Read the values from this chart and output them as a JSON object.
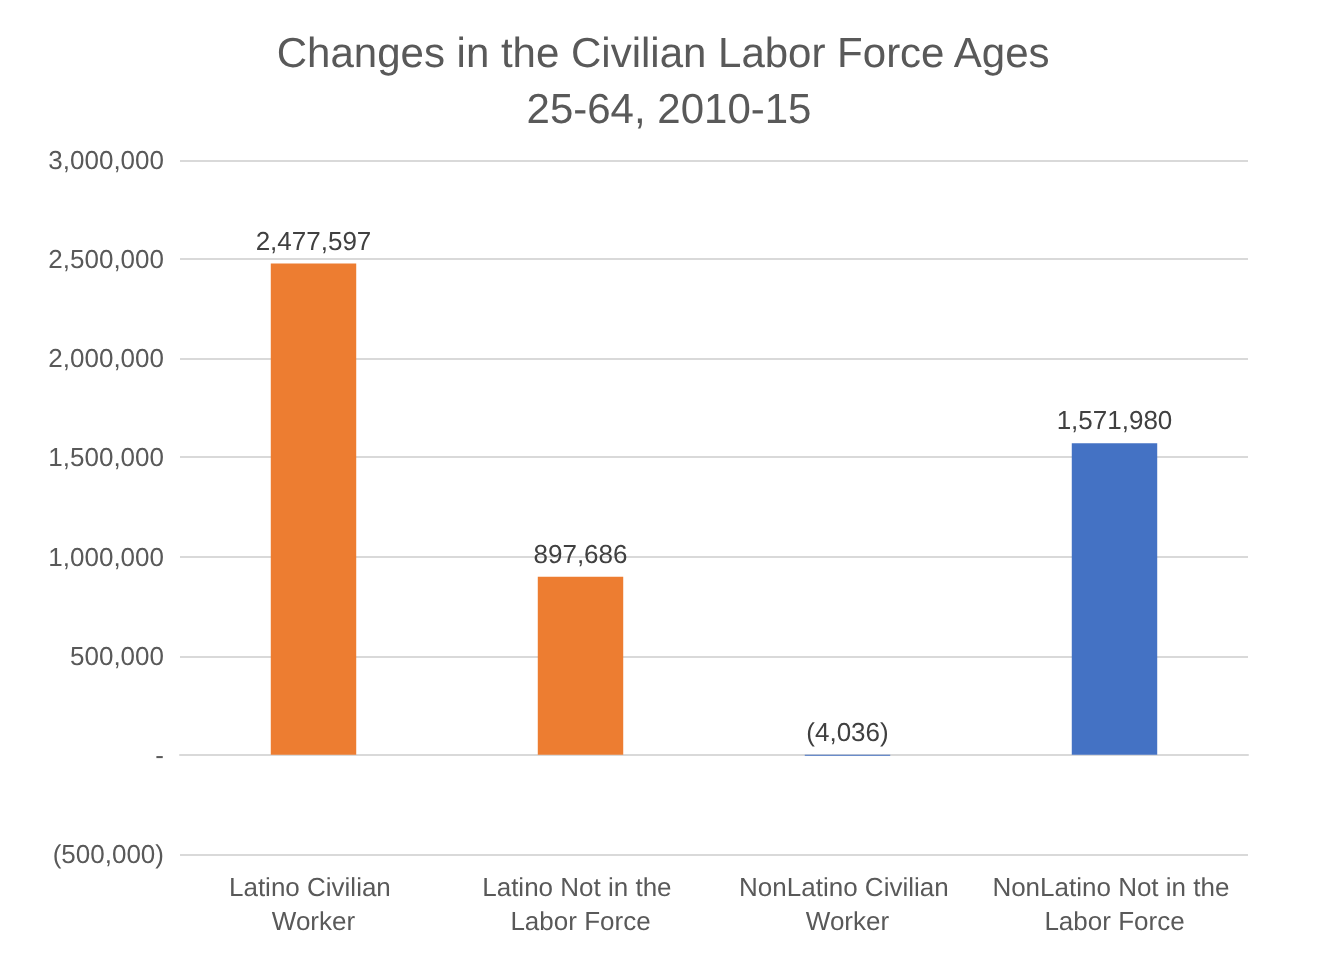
{
  "chart_data": {
    "type": "bar",
    "title": "Changes in the Civilian Labor Force Ages 25-64, 2010-15",
    "categories": [
      "Latino Civilian Worker",
      "Latino Not in the Labor Force",
      "NonLatino Civilian Worker",
      "NonLatino Not in the Labor Force"
    ],
    "values": [
      2477597,
      897686,
      -4036,
      1571980
    ],
    "colors": [
      "#ed7d31",
      "#ed7d31",
      "#4472c4",
      "#4472c4"
    ],
    "value_labels": [
      "2,477,597",
      "897,686",
      "(4,036)",
      "1,571,980"
    ],
    "ylim": [
      -500000,
      3000000
    ],
    "yticks": [
      {
        "value": -500000,
        "label": "(500,000)"
      },
      {
        "value": 0,
        "label": "-"
      },
      {
        "value": 500000,
        "label": "500,000"
      },
      {
        "value": 1000000,
        "label": "1,000,000"
      },
      {
        "value": 1500000,
        "label": "1,500,000"
      },
      {
        "value": 2000000,
        "label": "2,000,000"
      },
      {
        "value": 2500000,
        "label": "2,500,000"
      },
      {
        "value": 3000000,
        "label": "3,000,000"
      }
    ],
    "grid": true
  }
}
